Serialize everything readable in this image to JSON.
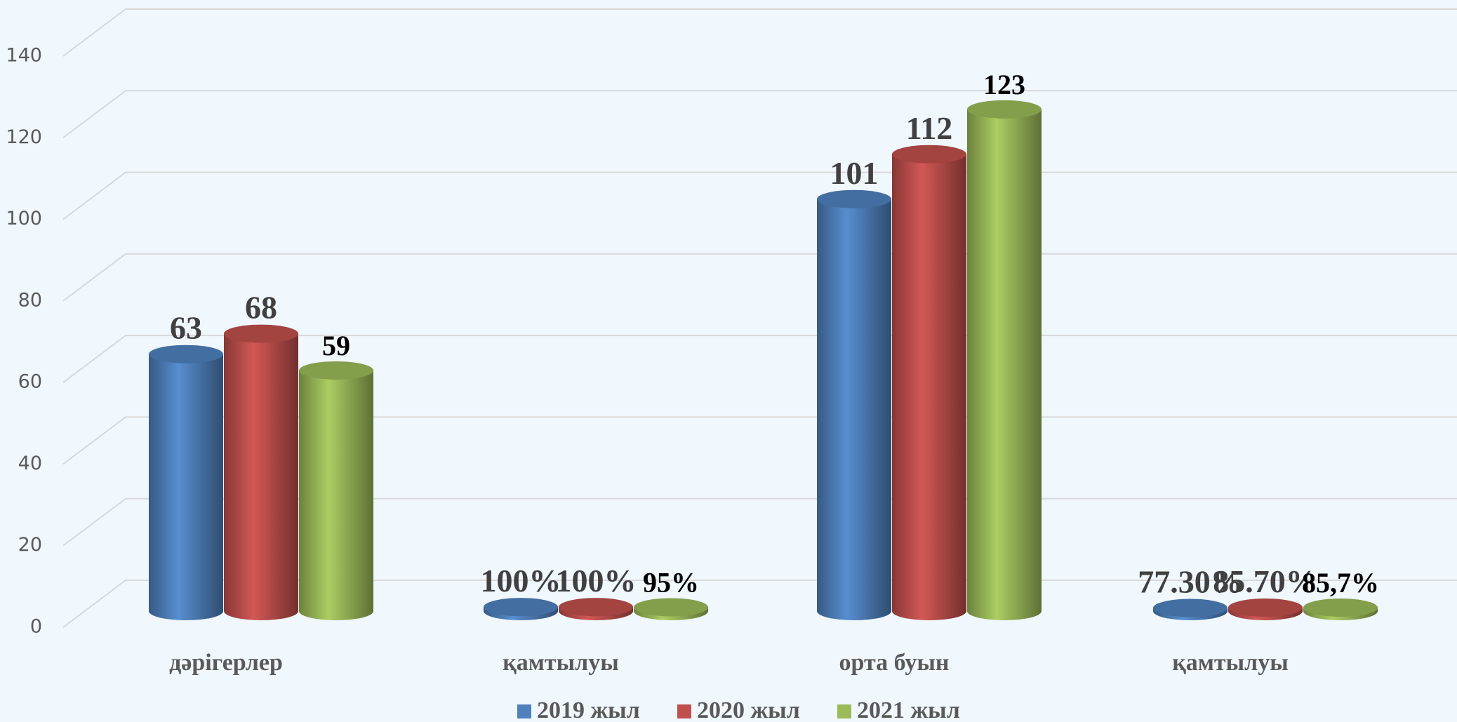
{
  "chart_data": {
    "type": "bar",
    "categories": [
      "дәрігерлер",
      "қамтылуы",
      "орта буын",
      "қамтылуы"
    ],
    "series": [
      {
        "name": "2019 жыл",
        "color": "#4f81bd",
        "values": [
          63,
          1,
          101,
          0.773
        ],
        "value_labels": [
          "63",
          "100%",
          "101",
          "77.30%"
        ]
      },
      {
        "name": "2020 жыл",
        "color": "#c0504d",
        "values": [
          68,
          1,
          112,
          0.857
        ],
        "value_labels": [
          "68",
          "100%",
          "112",
          "85.70%"
        ]
      },
      {
        "name": "2021 жыл",
        "color": "#9bbb59",
        "values": [
          59,
          0.95,
          123,
          0.857
        ],
        "value_labels": [
          "59",
          "95%",
          "123",
          "85,7%"
        ]
      }
    ],
    "ylim": [
      0,
      140
    ],
    "yticks": [
      0,
      20,
      40,
      60,
      80,
      100,
      120,
      140
    ],
    "grid": true,
    "legend": "bottom"
  }
}
